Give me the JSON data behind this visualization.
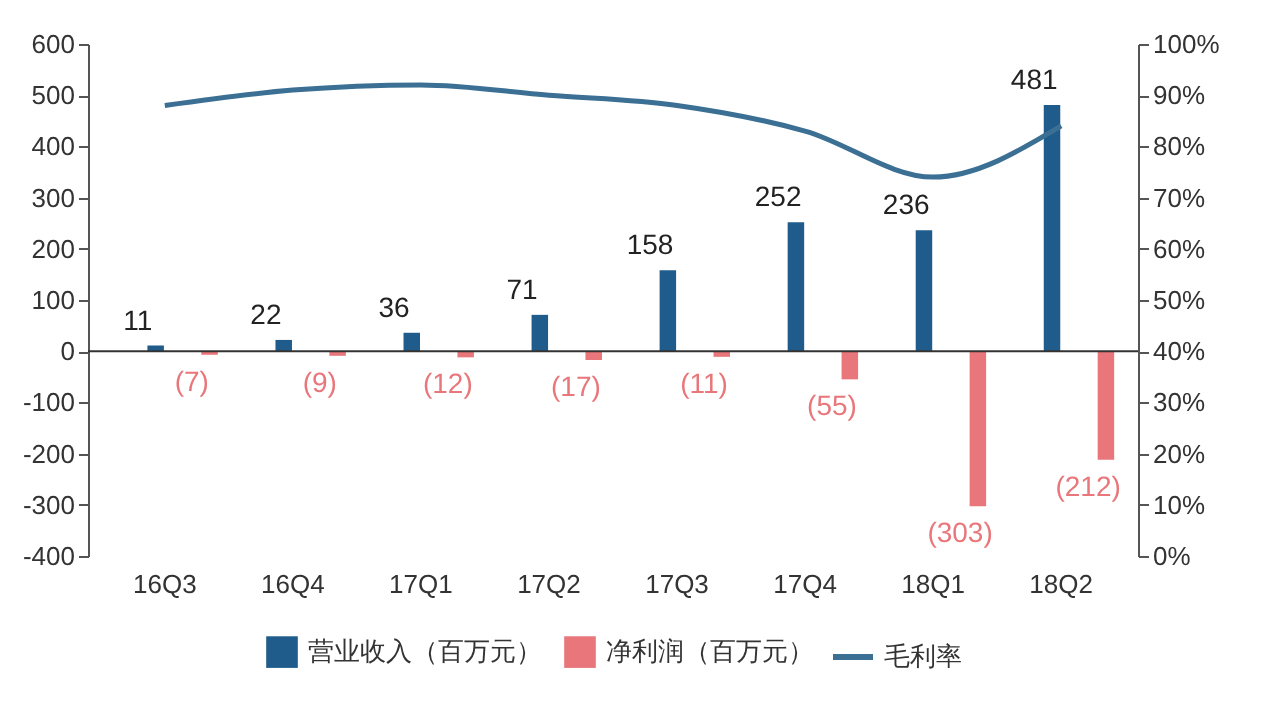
{
  "chart_data": {
    "type": "bar",
    "categories": [
      "16Q3",
      "16Q4",
      "17Q1",
      "17Q2",
      "17Q3",
      "17Q4",
      "18Q1",
      "18Q2"
    ],
    "series": [
      {
        "name": "营业收入（百万元）",
        "color": "#1f5c8b",
        "values": [
          11,
          22,
          36,
          71,
          158,
          252,
          236,
          481
        ],
        "value_labels": [
          "11",
          "22",
          "36",
          "71",
          "158",
          "252",
          "236",
          "481"
        ]
      },
      {
        "name": "净利润（百万元）",
        "color": "#e8767a",
        "values": [
          -7,
          -9,
          -12,
          -17,
          -11,
          -55,
          -303,
          -212
        ],
        "value_labels": [
          "(7)",
          "(9)",
          "(12)",
          "(17)",
          "(11)",
          "(55)",
          "(303)",
          "(212)"
        ]
      },
      {
        "name": "毛利率",
        "type": "line",
        "axis": "y2",
        "color": "#3b6f94",
        "values": [
          88,
          91,
          92,
          90,
          88,
          83,
          74,
          84
        ]
      }
    ],
    "ylim": [
      -400,
      600
    ],
    "yticks": [
      -400,
      -300,
      -200,
      -100,
      0,
      100,
      200,
      300,
      400,
      500,
      600
    ],
    "y2lim": [
      0,
      100
    ],
    "y2ticks": [
      {
        "value": 0,
        "label": "0%"
      },
      {
        "value": 10,
        "label": "10%"
      },
      {
        "value": 20,
        "label": "20%"
      },
      {
        "value": 30,
        "label": "30%"
      },
      {
        "value": 40,
        "label": "40%"
      },
      {
        "value": 50,
        "label": "50%"
      },
      {
        "value": 60,
        "label": "60%"
      },
      {
        "value": 70,
        "label": "70%"
      },
      {
        "value": 80,
        "label": "80%"
      },
      {
        "value": 90,
        "label": "90%"
      },
      {
        "value": 100,
        "label": "100%"
      }
    ],
    "ref_lines": [
      {
        "axis": "y",
        "value": 0,
        "color": "#333333",
        "line_style": "solid"
      }
    ],
    "grid": false,
    "legend": "bottom",
    "marker": "none",
    "line_style": "solid"
  }
}
